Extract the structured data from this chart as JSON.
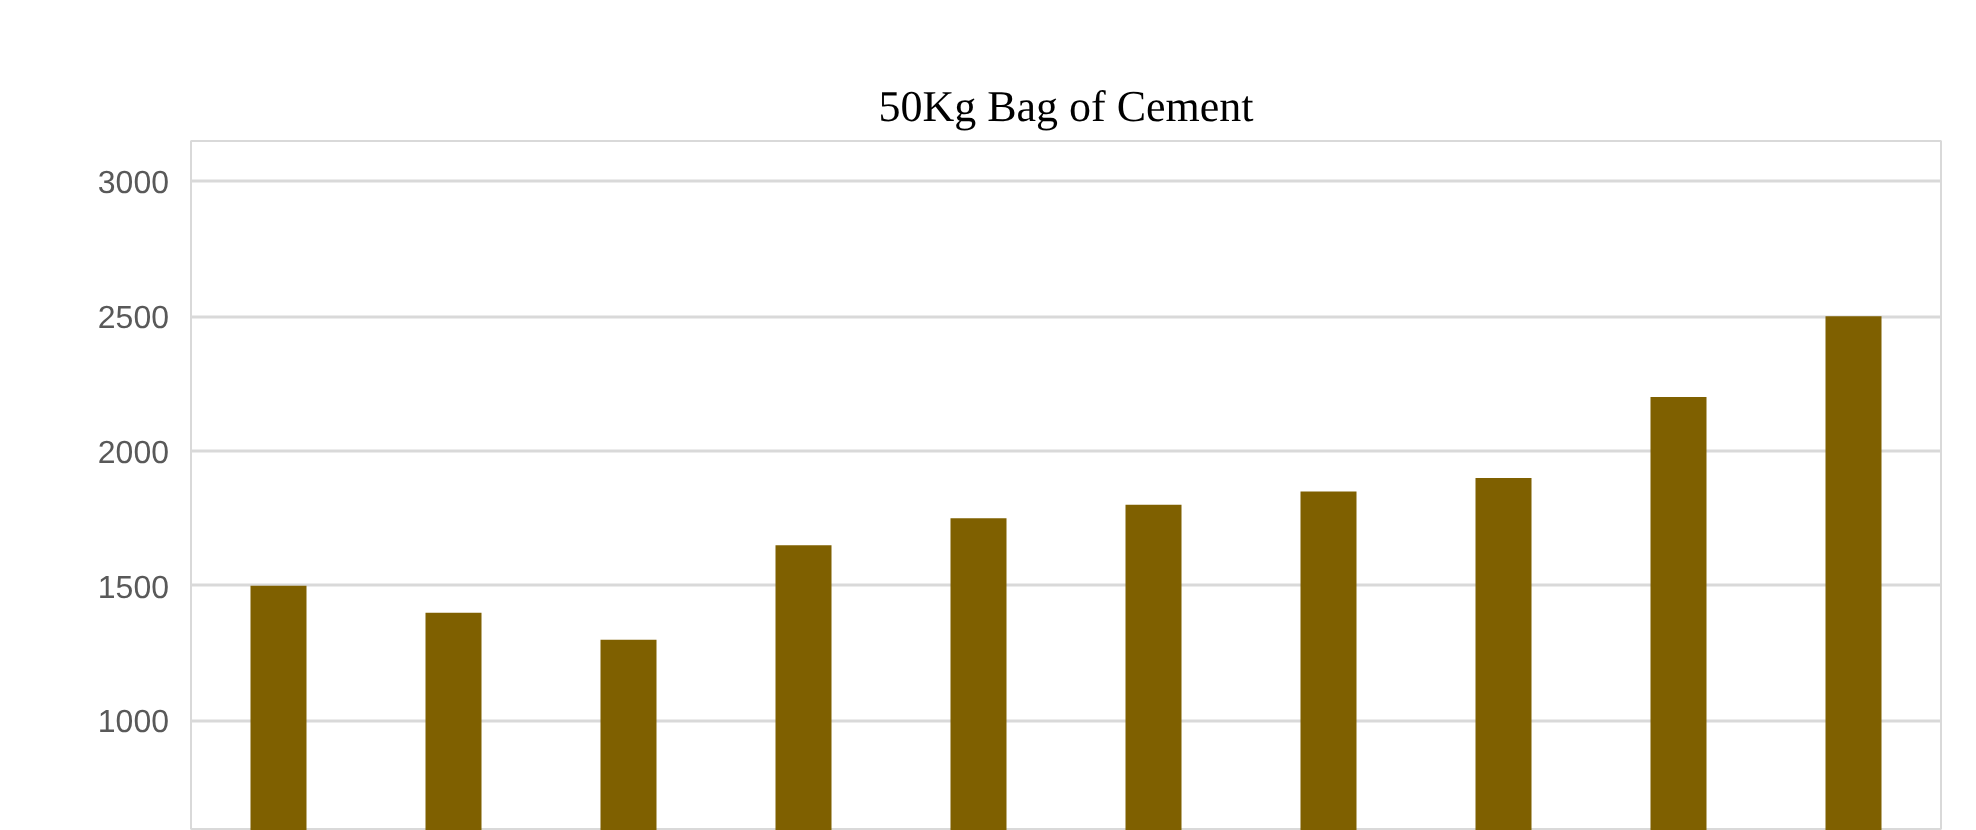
{
  "chart_data": {
    "type": "bar",
    "title": "50Kg Bag of Cement",
    "categories": [
      null,
      null,
      null,
      null,
      null,
      null,
      null,
      null,
      null,
      null
    ],
    "values": [
      1500,
      1400,
      1300,
      1650,
      1750,
      1800,
      1850,
      1900,
      2200,
      2500
    ],
    "color": "#7f6000",
    "ylim": [
      590,
      3150
    ],
    "yticks": [
      1000,
      1500,
      2000,
      2500,
      3000
    ],
    "grid": "y",
    "tick_labels": "y"
  }
}
